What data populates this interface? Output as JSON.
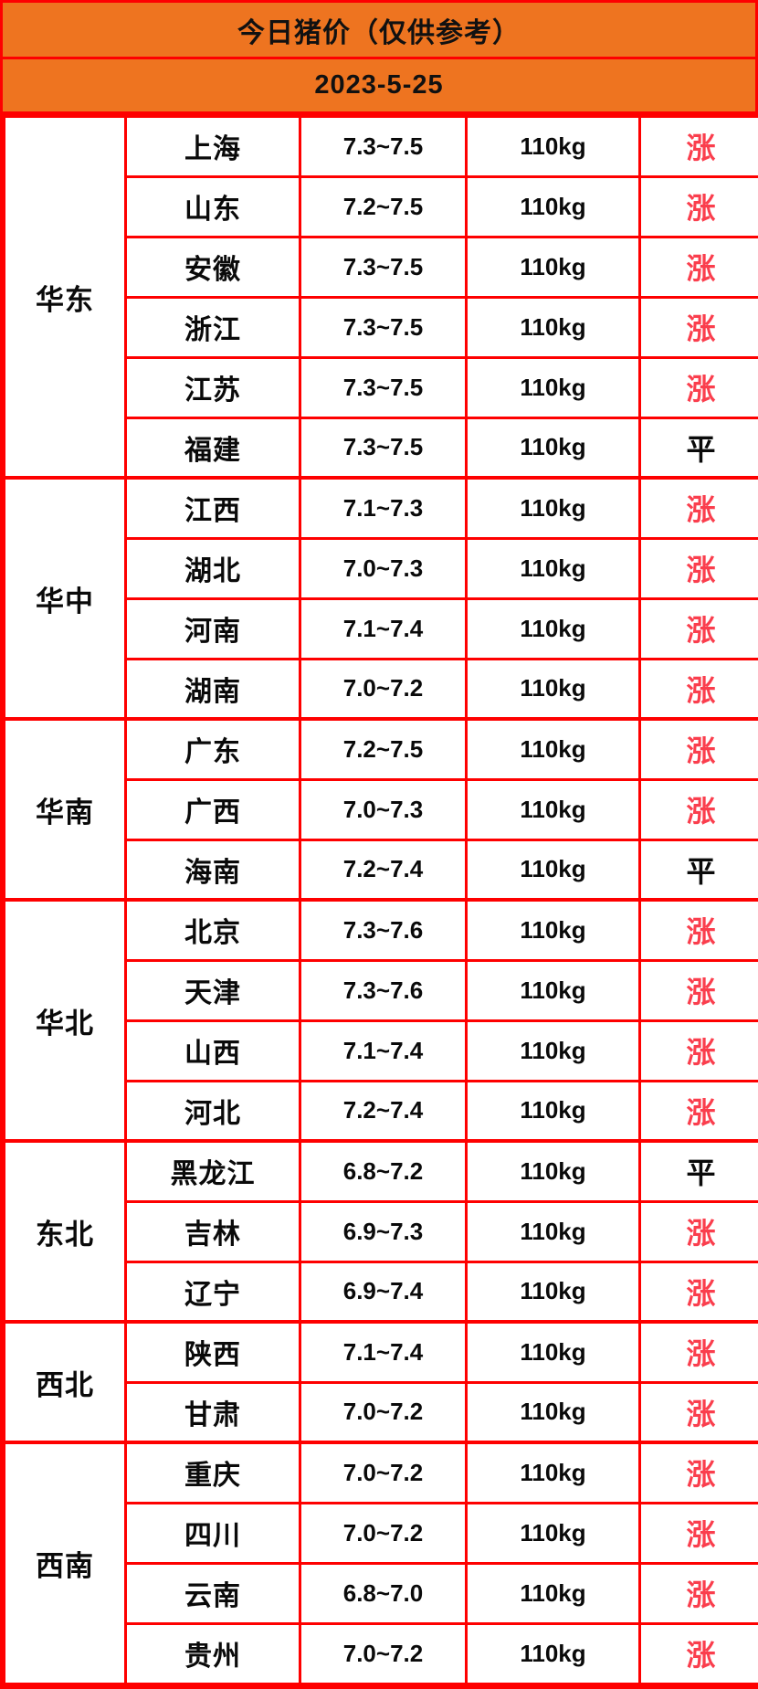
{
  "header": {
    "title": "今日猪价（仅供参考）",
    "date": "2023-5-25"
  },
  "colors": {
    "banner_background": "#EE7420",
    "border": "#FE0000",
    "trend_up_text": "#FA3E4D",
    "trend_flat_text": "#0A0A0A"
  },
  "chart_data": {
    "type": "table",
    "title": "今日猪价（仅供参考）",
    "subtitle": "2023-5-25",
    "weight_unit": "110kg",
    "trend_legend": {
      "up": "涨",
      "flat": "平"
    },
    "regions": [
      {
        "name": "华东",
        "rows": [
          {
            "province": "上海",
            "price": "7.3~7.5",
            "weight": "110kg",
            "trend": "涨",
            "trend_style": "up"
          },
          {
            "province": "山东",
            "price": "7.2~7.5",
            "weight": "110kg",
            "trend": "涨",
            "trend_style": "up"
          },
          {
            "province": "安徽",
            "price": "7.3~7.5",
            "weight": "110kg",
            "trend": "涨",
            "trend_style": "up"
          },
          {
            "province": "浙江",
            "price": "7.3~7.5",
            "weight": "110kg",
            "trend": "涨",
            "trend_style": "up"
          },
          {
            "province": "江苏",
            "price": "7.3~7.5",
            "weight": "110kg",
            "trend": "涨",
            "trend_style": "up"
          },
          {
            "province": "福建",
            "price": "7.3~7.5",
            "weight": "110kg",
            "trend": "平",
            "trend_style": "flat"
          }
        ]
      },
      {
        "name": "华中",
        "rows": [
          {
            "province": "江西",
            "price": "7.1~7.3",
            "weight": "110kg",
            "trend": "涨",
            "trend_style": "up"
          },
          {
            "province": "湖北",
            "price": "7.0~7.3",
            "weight": "110kg",
            "trend": "涨",
            "trend_style": "up"
          },
          {
            "province": "河南",
            "price": "7.1~7.4",
            "weight": "110kg",
            "trend": "涨",
            "trend_style": "up"
          },
          {
            "province": "湖南",
            "price": "7.0~7.2",
            "weight": "110kg",
            "trend": "涨",
            "trend_style": "up"
          }
        ]
      },
      {
        "name": "华南",
        "rows": [
          {
            "province": "广东",
            "price": "7.2~7.5",
            "weight": "110kg",
            "trend": "涨",
            "trend_style": "up"
          },
          {
            "province": "广西",
            "price": "7.0~7.3",
            "weight": "110kg",
            "trend": "涨",
            "trend_style": "up"
          },
          {
            "province": "海南",
            "price": "7.2~7.4",
            "weight": "110kg",
            "trend": "平",
            "trend_style": "flat"
          }
        ]
      },
      {
        "name": "华北",
        "rows": [
          {
            "province": "北京",
            "price": "7.3~7.6",
            "weight": "110kg",
            "trend": "涨",
            "trend_style": "up"
          },
          {
            "province": "天津",
            "price": "7.3~7.6",
            "weight": "110kg",
            "trend": "涨",
            "trend_style": "up"
          },
          {
            "province": "山西",
            "price": "7.1~7.4",
            "weight": "110kg",
            "trend": "涨",
            "trend_style": "up"
          },
          {
            "province": "河北",
            "price": "7.2~7.4",
            "weight": "110kg",
            "trend": "涨",
            "trend_style": "up"
          }
        ]
      },
      {
        "name": "东北",
        "rows": [
          {
            "province": "黑龙江",
            "price": "6.8~7.2",
            "weight": "110kg",
            "trend": "平",
            "trend_style": "flat"
          },
          {
            "province": "吉林",
            "price": "6.9~7.3",
            "weight": "110kg",
            "trend": "涨",
            "trend_style": "up"
          },
          {
            "province": "辽宁",
            "price": "6.9~7.4",
            "weight": "110kg",
            "trend": "涨",
            "trend_style": "up"
          }
        ]
      },
      {
        "name": "西北",
        "rows": [
          {
            "province": "陕西",
            "price": "7.1~7.4",
            "weight": "110kg",
            "trend": "涨",
            "trend_style": "up"
          },
          {
            "province": "甘肃",
            "price": "7.0~7.2",
            "weight": "110kg",
            "trend": "涨",
            "trend_style": "up"
          }
        ]
      },
      {
        "name": "西南",
        "rows": [
          {
            "province": "重庆",
            "price": "7.0~7.2",
            "weight": "110kg",
            "trend": "涨",
            "trend_style": "up"
          },
          {
            "province": "四川",
            "price": "7.0~7.2",
            "weight": "110kg",
            "trend": "涨",
            "trend_style": "up"
          },
          {
            "province": "云南",
            "price": "6.8~7.0",
            "weight": "110kg",
            "trend": "涨",
            "trend_style": "up"
          },
          {
            "province": "贵州",
            "price": "7.0~7.2",
            "weight": "110kg",
            "trend": "涨",
            "trend_style": "up"
          }
        ]
      }
    ]
  }
}
